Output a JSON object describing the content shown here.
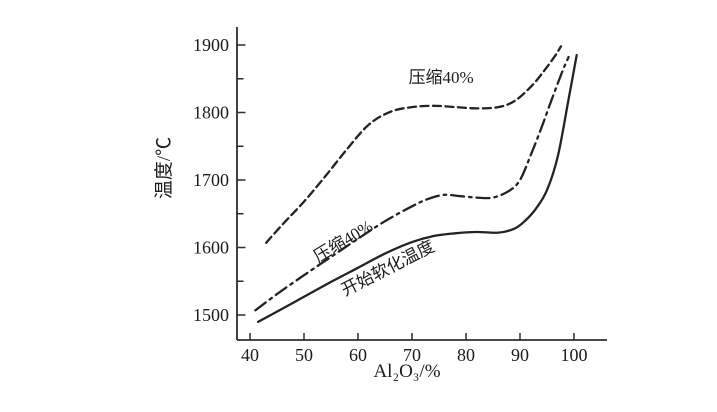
{
  "figure": {
    "background": "#ffffff",
    "ink": "#232323"
  },
  "chart_data": {
    "type": "line",
    "title": "",
    "xlabel": "Al₂O₃/%",
    "ylabel": "温度/℃",
    "xlim": [
      40,
      100
    ],
    "ylim": [
      1500,
      1900
    ],
    "grid": false,
    "legend_position": "inline-annotations",
    "x_ticks": [
      40,
      50,
      60,
      70,
      80,
      90,
      100
    ],
    "y_ticks": [
      1500,
      1600,
      1700,
      1800,
      1900
    ],
    "y_minor_ticks": [
      1550,
      1650,
      1750,
      1850
    ],
    "series": [
      {
        "name": "压缩40%",
        "line_style": "dashed",
        "x": [
          43,
          46,
          50,
          54,
          58,
          62,
          66,
          70,
          74,
          78,
          82,
          86,
          89,
          92,
          94.5,
          96.5,
          97.6
        ],
        "y": [
          1607,
          1634,
          1668,
          1706,
          1746,
          1782,
          1801,
          1808,
          1810,
          1808,
          1806,
          1808,
          1817,
          1838,
          1862,
          1884,
          1898
        ]
      },
      {
        "name": "压缩40%",
        "line_style": "dash-dot",
        "x": [
          41,
          45,
          50,
          55,
          60,
          65,
          70,
          73,
          76,
          79,
          82,
          85,
          88,
          90,
          92,
          94,
          96,
          98,
          99
        ],
        "y": [
          1507,
          1531,
          1559,
          1586,
          1613,
          1639,
          1661,
          1672,
          1678,
          1676,
          1674,
          1674,
          1684,
          1700,
          1737,
          1778,
          1822,
          1864,
          1882
        ]
      },
      {
        "name": "开始软化温度",
        "line_style": "solid",
        "x": [
          41.5,
          45,
          50,
          55,
          60,
          65,
          70,
          74,
          78,
          82,
          86,
          89,
          91,
          93,
          95,
          97,
          99,
          100.5
        ],
        "y": [
          1490,
          1505,
          1527,
          1549,
          1570,
          1591,
          1608,
          1617,
          1621,
          1623,
          1622,
          1628,
          1640,
          1658,
          1685,
          1735,
          1820,
          1885
        ]
      }
    ],
    "annotations": [
      {
        "text": "压缩40%",
        "x": 75.4,
        "y": 1844,
        "rotation": 0
      },
      {
        "text": "压缩40%",
        "x": 57.8,
        "y": 1602,
        "rotation": -31
      },
      {
        "text": "开始软化温度",
        "x": 66.0,
        "y": 1562,
        "rotation": -27
      }
    ]
  }
}
